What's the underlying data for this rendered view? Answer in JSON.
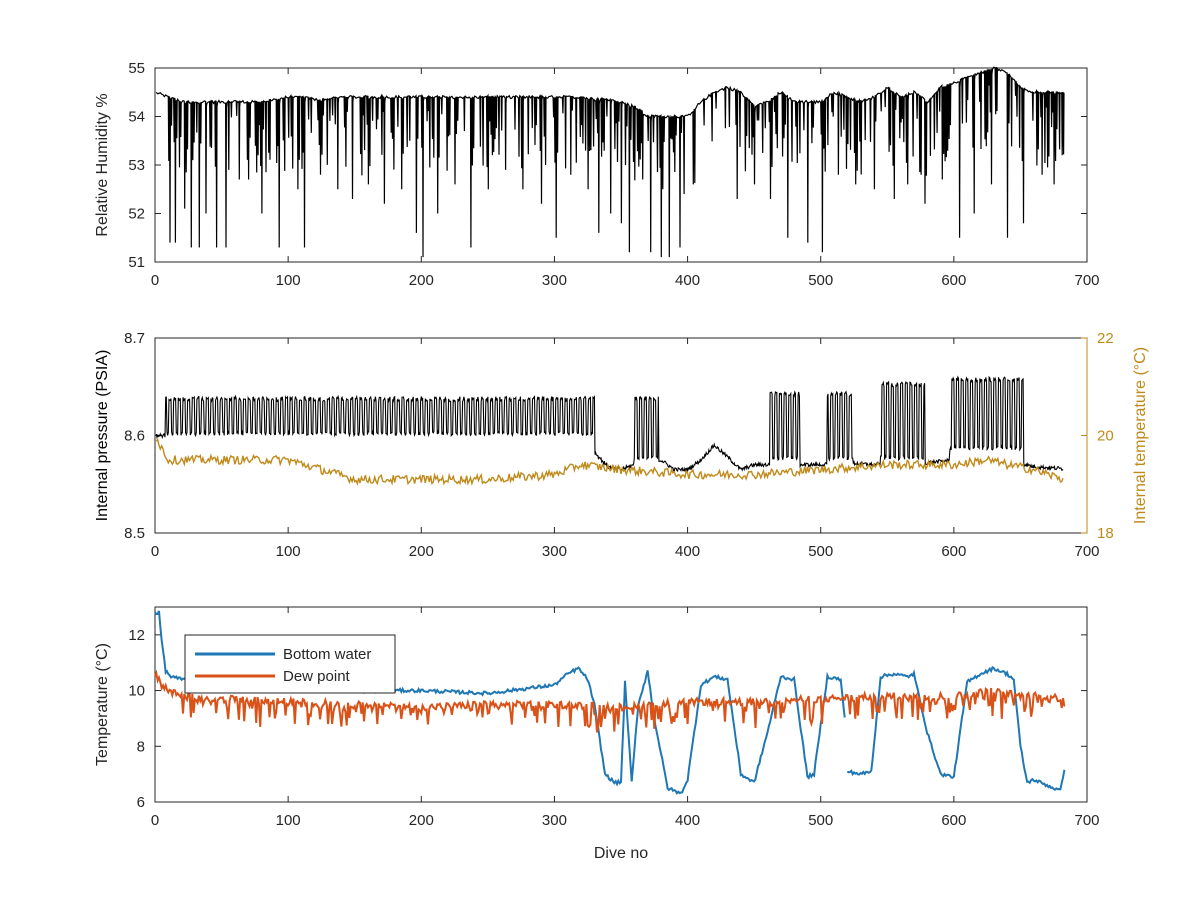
{
  "colors": {
    "black": "#000000",
    "gold": "#c08a1a",
    "blue": "#1f77b4",
    "orange": "#d95319",
    "axis": "#262626"
  },
  "chart_data": [
    {
      "type": "line",
      "xlabel": "",
      "ylabel": "Relative Humidity %",
      "xlim": [
        0,
        700
      ],
      "ylim": [
        51,
        55
      ],
      "xticks": [
        0,
        100,
        200,
        300,
        400,
        500,
        600,
        700
      ],
      "yticks": [
        51,
        52,
        53,
        54,
        55
      ],
      "grid": false,
      "series": [
        {
          "color": "#000000",
          "x": [
            0,
            10,
            20,
            30,
            40,
            50,
            60,
            70,
            80,
            90,
            100,
            110,
            120,
            130,
            140,
            150,
            160,
            170,
            180,
            190,
            200,
            210,
            220,
            230,
            240,
            250,
            260,
            270,
            280,
            290,
            300,
            310,
            320,
            330,
            340,
            350,
            360,
            370,
            380,
            390,
            400,
            410,
            420,
            430,
            440,
            450,
            460,
            470,
            480,
            490,
            500,
            510,
            520,
            530,
            540,
            550,
            560,
            570,
            580,
            590,
            600,
            610,
            620,
            630,
            640,
            650,
            660,
            670,
            680
          ],
          "y": [
            54.5,
            54.4,
            54.3,
            54.3,
            54.3,
            54.3,
            54.3,
            54.3,
            54.3,
            54.35,
            54.4,
            54.4,
            54.35,
            54.35,
            54.4,
            54.4,
            54.4,
            54.4,
            54.4,
            54.4,
            54.4,
            54.4,
            54.4,
            54.4,
            54.4,
            54.4,
            54.4,
            54.4,
            54.4,
            54.4,
            54.4,
            54.4,
            54.4,
            54.35,
            54.35,
            54.3,
            54.2,
            54.0,
            54.0,
            54.0,
            54.0,
            54.3,
            54.5,
            54.6,
            54.5,
            54.2,
            54.3,
            54.5,
            54.3,
            54.3,
            54.3,
            54.5,
            54.4,
            54.3,
            54.4,
            54.6,
            54.4,
            54.5,
            54.3,
            54.6,
            54.7,
            54.8,
            54.9,
            55.0,
            54.9,
            54.6,
            54.5,
            54.5,
            54.5
          ],
          "dips": [
            [
              11,
              51.4
            ],
            [
              15,
              51.4
            ],
            [
              22,
              52.1
            ],
            [
              27,
              51.3
            ],
            [
              33,
              51.3
            ],
            [
              38,
              52.0
            ],
            [
              46,
              51.3
            ],
            [
              53,
              51.3
            ],
            [
              63,
              52.7
            ],
            [
              70,
              52.7
            ],
            [
              80,
              52.0
            ],
            [
              93,
              51.3
            ],
            [
              107,
              52.5
            ],
            [
              112,
              51.3
            ],
            [
              124,
              52.8
            ],
            [
              137,
              52.5
            ],
            [
              148,
              52.3
            ],
            [
              160,
              52.6
            ],
            [
              172,
              52.2
            ],
            [
              185,
              52.5
            ],
            [
              196,
              51.6
            ],
            [
              201,
              51.1
            ],
            [
              212,
              52.0
            ],
            [
              225,
              52.6
            ],
            [
              237,
              51.3
            ],
            [
              250,
              52.5
            ],
            [
              263,
              52.9
            ],
            [
              276,
              52.5
            ],
            [
              290,
              52.2
            ],
            [
              301,
              51.5
            ],
            [
              312,
              52.8
            ],
            [
              325,
              52.5
            ],
            [
              333,
              51.6
            ],
            [
              342,
              52.0
            ],
            [
              350,
              51.8
            ],
            [
              356,
              51.2
            ],
            [
              366,
              52.7
            ],
            [
              372,
              51.2
            ],
            [
              380,
              51.1
            ],
            [
              386,
              51.1
            ],
            [
              394,
              51.3
            ],
            [
              404,
              52.6
            ],
            [
              437,
              52.3
            ],
            [
              450,
              52.6
            ],
            [
              462,
              52.3
            ],
            [
              475,
              51.5
            ],
            [
              490,
              51.4
            ],
            [
              501,
              51.2
            ],
            [
              513,
              52.8
            ],
            [
              526,
              52.6
            ],
            [
              540,
              52.5
            ],
            [
              555,
              52.3
            ],
            [
              565,
              52.6
            ],
            [
              578,
              52.2
            ],
            [
              591,
              52.7
            ],
            [
              604,
              51.5
            ],
            [
              615,
              52.0
            ],
            [
              628,
              52.6
            ],
            [
              640,
              51.5
            ],
            [
              652,
              51.8
            ],
            [
              666,
              52.8
            ],
            [
              675,
              52.6
            ]
          ]
        }
      ]
    },
    {
      "type": "line",
      "xlabel": "",
      "ylabel": "Internal pressure (PSIA)",
      "ylabel_right": "Internal temperature (°C)",
      "xlim": [
        0,
        700
      ],
      "ylim": [
        8.5,
        8.7
      ],
      "ylim_right": [
        18,
        22
      ],
      "xticks": [
        0,
        100,
        200,
        300,
        400,
        500,
        600,
        700
      ],
      "yticks": [
        8.5,
        8.6,
        8.7
      ],
      "yticks_right": [
        18,
        20,
        22
      ],
      "grid": false,
      "series": [
        {
          "color": "#000000",
          "axis": "left",
          "x": [
            0,
            5,
            10,
            50,
            100,
            150,
            200,
            250,
            300,
            320,
            330,
            340,
            350,
            360,
            370,
            380,
            390,
            400,
            410,
            420,
            430,
            440,
            450,
            460,
            480,
            500,
            520,
            540,
            560,
            580,
            600,
            620,
            640,
            660,
            682
          ],
          "y": [
            8.6,
            8.6,
            8.6,
            8.6,
            8.598,
            8.596,
            8.594,
            8.592,
            8.59,
            8.59,
            8.583,
            8.568,
            8.565,
            8.57,
            8.57,
            8.575,
            8.565,
            8.565,
            8.575,
            8.59,
            8.578,
            8.565,
            8.57,
            8.57,
            8.57,
            8.57,
            8.572,
            8.57,
            8.575,
            8.572,
            8.575,
            8.575,
            8.575,
            8.568,
            8.566
          ],
          "bands": [
            [
              8,
              330,
              8.6,
              8.64
            ],
            [
              360,
              378,
              8.575,
              8.64
            ],
            [
              462,
              484,
              8.575,
              8.645
            ],
            [
              505,
              524,
              8.575,
              8.645
            ],
            [
              545,
              578,
              8.575,
              8.655
            ],
            [
              597,
              652,
              8.585,
              8.66
            ]
          ]
        },
        {
          "color": "#c08a1a",
          "axis": "right",
          "x": [
            0,
            10,
            50,
            100,
            150,
            200,
            250,
            300,
            320,
            350,
            400,
            450,
            500,
            550,
            600,
            625,
            640,
            660,
            682
          ],
          "y": [
            20.0,
            19.5,
            19.5,
            19.5,
            19.1,
            19.1,
            19.1,
            19.2,
            19.4,
            19.3,
            19.2,
            19.2,
            19.3,
            19.4,
            19.4,
            19.5,
            19.4,
            19.3,
            19.1
          ]
        }
      ]
    },
    {
      "type": "line",
      "xlabel": "Dive no",
      "ylabel": "Temperature (°C)",
      "xlim": [
        0,
        700
      ],
      "ylim": [
        6,
        13
      ],
      "xticks": [
        0,
        100,
        200,
        300,
        400,
        500,
        600,
        700
      ],
      "yticks": [
        6,
        8,
        10,
        12
      ],
      "grid": false,
      "legend": "top-left",
      "series": [
        {
          "name": "Bottom water",
          "color": "#1f77b4",
          "x": [
            0,
            3,
            5,
            8,
            12,
            20,
            50,
            100,
            150,
            200,
            250,
            300,
            310,
            318,
            325,
            330,
            338,
            345,
            350,
            353,
            358,
            363,
            370,
            375,
            385,
            395,
            400,
            410,
            420,
            430,
            440,
            450,
            460,
            470,
            480,
            490,
            495,
            505,
            515,
            518
          ],
          "y": [
            12.8,
            12.8,
            11.8,
            10.7,
            10.5,
            10.4,
            10.3,
            10.1,
            10.0,
            10.0,
            9.9,
            10.2,
            10.6,
            10.8,
            10.4,
            9.5,
            7.0,
            6.7,
            6.7,
            10.3,
            6.7,
            9.5,
            10.7,
            9.0,
            6.5,
            6.3,
            6.8,
            10.2,
            10.5,
            10.4,
            7.0,
            6.7,
            8.5,
            10.5,
            10.4,
            6.9,
            7.0,
            10.5,
            10.4,
            9.0
          ]
        },
        {
          "name": "",
          "color": "#1f77b4",
          "x": [
            520,
            530,
            538,
            545,
            555,
            565,
            570,
            580,
            590,
            600,
            610,
            620,
            630,
            640,
            645,
            650,
            655,
            660,
            670,
            680,
            683
          ],
          "y": [
            7.1,
            7.0,
            7.1,
            10.5,
            10.6,
            10.5,
            10.6,
            8.5,
            7.0,
            6.9,
            10.3,
            10.6,
            10.8,
            10.6,
            10.4,
            8.0,
            6.7,
            6.8,
            6.6,
            6.4,
            7.2
          ]
        },
        {
          "name": "Dew point",
          "color": "#d95319",
          "x": [
            0,
            5,
            10,
            20,
            50,
            100,
            150,
            200,
            250,
            300,
            350,
            400,
            450,
            500,
            550,
            600,
            630,
            650,
            670,
            683
          ],
          "y": [
            10.6,
            10.2,
            10.0,
            9.8,
            9.7,
            9.6,
            9.5,
            9.4,
            9.5,
            9.5,
            9.4,
            9.6,
            9.6,
            9.7,
            9.8,
            9.8,
            10.0,
            9.8,
            9.8,
            9.7
          ]
        }
      ]
    }
  ]
}
